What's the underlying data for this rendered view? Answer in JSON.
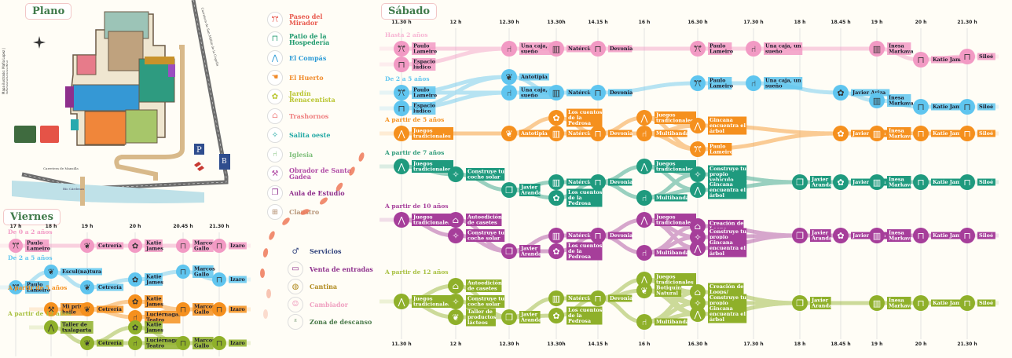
{
  "plano": {
    "title": "Plano",
    "side_credit": "Mapa ilustrado: Mafia Lopez | lafarandulaconsulting",
    "road_top": "Carretera de San Millán de la Cogolla",
    "road_bottom": "Carretera de Mansilla",
    "river": "Río Cárdenas",
    "parking": "P",
    "bus": "B",
    "compass": "N"
  },
  "legend": {
    "places": [
      {
        "label": "Paseo del Mirador",
        "color": "#e8594d",
        "icon": "people-icon"
      },
      {
        "label": "Patio de la Hospedería",
        "color": "#1f9a6e",
        "icon": "bench-icon"
      },
      {
        "label": "El Compás",
        "color": "#2e9bd6",
        "icon": "compass-icon"
      },
      {
        "label": "El Huerto",
        "color": "#f08a2a",
        "icon": "gloves-icon"
      },
      {
        "label": "Jardín Renacentista",
        "color": "#b9c530",
        "icon": "flower-icon"
      },
      {
        "label": "Trashornos",
        "color": "#ef8080",
        "icon": "oven-icon"
      },
      {
        "label": "Salita oeste",
        "color": "#23a9a5",
        "icon": "star-icon"
      },
      {
        "label": "Iglesia",
        "color": "#7fbf7a",
        "icon": "chair-icon"
      },
      {
        "label": "Obrador de Santa Gadea",
        "color": "#b04aa5",
        "icon": "workshop-icon"
      },
      {
        "label": "Aula de Estudio",
        "color": "#8e2f8c",
        "icon": "book-icon"
      },
      {
        "label": "Claustro",
        "color": "#b8967a",
        "icon": "cloister-icon"
      }
    ],
    "services": [
      {
        "label": "Servicios",
        "color": "#2d3f7a",
        "icon": "toilet-icon"
      },
      {
        "label": "Venta de entradas",
        "color": "#8e2f8c",
        "icon": "ticket-icon"
      },
      {
        "label": "Cantina",
        "color": "#b08a1e",
        "icon": "cantina-icon"
      },
      {
        "label": "Cambiador",
        "color": "#f0a0c0",
        "icon": "baby-icon"
      },
      {
        "label": "Zona de descanso",
        "color": "#4b7a4b",
        "icon": "rest-icon"
      }
    ]
  },
  "viernes": {
    "title": "Viernes",
    "times": [
      "17 h",
      "18 h",
      "19 h",
      "20 h",
      "20.45 h",
      "21.30 h"
    ],
    "groups": [
      {
        "label": "De 0 a 2 años",
        "color": "#f29ac4",
        "label_color": "#f29ac4",
        "events": [
          {
            "t": 0,
            "lane": 0,
            "label": "Paulo Lameiro",
            "icon": "people-icon"
          },
          {
            "t": 2,
            "lane": 0,
            "label": "Cetrería",
            "icon": "bird-icon"
          },
          {
            "t": 3,
            "lane": 0,
            "label": "Katie James",
            "icon": "flower-icon"
          },
          {
            "t": 4,
            "lane": 0,
            "label": "Marcos Gallo",
            "icon": "bench-icon"
          },
          {
            "t": 5,
            "lane": 0,
            "label": "Izaro",
            "icon": "bench-icon"
          }
        ]
      },
      {
        "label": "De 2 a 5 años",
        "color": "#5fc5ef",
        "label_color": "#5fc5ef",
        "events": [
          {
            "t": 0,
            "lane": 1,
            "label": "Paulo Lameiro",
            "icon": "people-icon"
          },
          {
            "t": 1,
            "lane": 0,
            "label": "Escul(na)tura",
            "icon": "bird-icon"
          },
          {
            "t": 2,
            "lane": 1,
            "label": "Cetrería",
            "icon": "bird-icon"
          },
          {
            "t": 3,
            "lane": 0.5,
            "label": "Katie James",
            "icon": "flower-icon"
          },
          {
            "t": 4,
            "lane": 0,
            "label": "Marcos Gallo",
            "icon": "bench-icon"
          },
          {
            "t": 5,
            "lane": 0.5,
            "label": "Izaro",
            "icon": "bench-icon"
          }
        ]
      },
      {
        "label": "A partir de 5 años",
        "color": "#f5901e",
        "label_color": "#f5901e",
        "events": [
          {
            "t": 1,
            "lane": 0.5,
            "label": "Mi primer baile",
            "icon": "workshop-icon"
          },
          {
            "t": 2,
            "lane": 0.5,
            "label": "Cetrería",
            "icon": "bird-icon"
          },
          {
            "t": 3,
            "lane": 0,
            "label": "Katie James",
            "icon": "flower-icon"
          },
          {
            "t": 3,
            "lane": 1,
            "label": "Luciérnagas Teatro",
            "icon": "chair-icon"
          },
          {
            "t": 4,
            "lane": 0.5,
            "label": "Marcos Gallo",
            "icon": "bench-icon"
          },
          {
            "t": 5,
            "lane": 0.5,
            "label": "Izaro",
            "icon": "bench-icon"
          }
        ]
      },
      {
        "label": "A partir de 12 años",
        "color": "#8fb02a",
        "label_color": "#a8c040",
        "events": [
          {
            "t": 1,
            "lane": 0,
            "label": "Taller de txalaparta",
            "icon": "compass-icon"
          },
          {
            "t": 2,
            "lane": 1,
            "label": "Cetrería",
            "icon": "bird-icon"
          },
          {
            "t": 3,
            "lane": 0,
            "label": "Katie James",
            "icon": "flower-icon"
          },
          {
            "t": 3,
            "lane": 1,
            "label": "Luciérnagas Teatro",
            "icon": "chair-icon"
          },
          {
            "t": 4,
            "lane": 1,
            "label": "Marcos Gallo",
            "icon": "bench-icon"
          },
          {
            "t": 5,
            "lane": 1,
            "label": "Izaro",
            "icon": "bench-icon"
          }
        ]
      }
    ]
  },
  "sabado": {
    "title": "Sábado",
    "times": [
      "11.30 h",
      "12 h",
      "12.30 h",
      "13.30h",
      "14.15 h",
      "16 h",
      "16.30 h",
      "17.30 h",
      "18 h",
      "18.45 h",
      "19 h",
      "20 h",
      "21.30 h"
    ],
    "groups": [
      {
        "label": "Hasta 2 años",
        "color": "#f29ac4",
        "label_color": "#f7b3d2",
        "dark": false,
        "events": [
          {
            "t": 0,
            "lane": 0,
            "label": "Paulo Lameiro",
            "icon": "people-icon"
          },
          {
            "t": 0,
            "lane": 1,
            "label": "Espacio lúdico",
            "icon": "bench-icon"
          },
          {
            "t": 2,
            "lane": 0,
            "label": "Una caja, un sueño",
            "icon": "chair-icon"
          },
          {
            "t": 3,
            "lane": 0,
            "label": "Natércia",
            "icon": "door-icon"
          },
          {
            "t": 4,
            "lane": 0,
            "label": "Devonia",
            "icon": "bench-icon"
          },
          {
            "t": 6,
            "lane": 0,
            "label": "Paulo Lameiro",
            "icon": "people-icon"
          },
          {
            "t": 7,
            "lane": 0,
            "label": "Una caja, un sueño",
            "icon": "chair-icon"
          },
          {
            "t": 10,
            "lane": 0,
            "label": "Inesa Markava",
            "icon": "door-icon"
          },
          {
            "t": 11,
            "lane": 0.7,
            "label": "Katie James",
            "icon": "bench-icon"
          },
          {
            "t": 12,
            "lane": 0.5,
            "label": "Siloé",
            "icon": "bench-icon"
          }
        ]
      },
      {
        "label": "De 2 a 5 años",
        "color": "#5fc5ef",
        "label_color": "#5fc5ef",
        "dark": false,
        "events": [
          {
            "t": 2,
            "lane": -1,
            "label": "Antotipia",
            "icon": "bird-icon"
          },
          {
            "t": 0,
            "lane": 0,
            "label": "Paulo Lameiro",
            "icon": "people-icon"
          },
          {
            "t": 0,
            "lane": 1,
            "label": "Espacio lúdico",
            "icon": "bench-icon"
          },
          {
            "t": 2,
            "lane": 0,
            "label": "Una caja, un sueño",
            "icon": "chair-icon"
          },
          {
            "t": 3,
            "lane": 0,
            "label": "Natércia",
            "icon": "door-icon"
          },
          {
            "t": 4,
            "lane": 0,
            "label": "Devonia",
            "icon": "bench-icon"
          },
          {
            "t": 6,
            "lane": -0.6,
            "label": "Paulo Lameiro",
            "icon": "people-icon"
          },
          {
            "t": 7,
            "lane": -0.6,
            "label": "Una caja, un sueño",
            "icon": "chair-icon"
          },
          {
            "t": 9,
            "lane": 0,
            "label": "Javier Ariza",
            "icon": "flower-icon"
          },
          {
            "t": 10,
            "lane": 0.5,
            "label": "Inesa Markava",
            "icon": "door-icon"
          },
          {
            "t": 11,
            "lane": 0.9,
            "label": "Katie James",
            "icon": "bench-icon"
          },
          {
            "t": 12,
            "lane": 0.9,
            "label": "Siloé",
            "icon": "bench-icon"
          }
        ]
      },
      {
        "label": "A partir de 5 años",
        "color": "#f5901e",
        "label_color": "#f5901e",
        "dark": true,
        "events": [
          {
            "t": 0,
            "lane": 0,
            "label": "Juegos tradicionales",
            "icon": "compass-icon"
          },
          {
            "t": 2,
            "lane": 0,
            "label": "Antotipia",
            "icon": "bird-icon"
          },
          {
            "t": 3,
            "lane": -1,
            "label": "Los cuentos de la Pedrosa",
            "icon": "flower-icon"
          },
          {
            "t": 3,
            "lane": 0,
            "label": "Natércia",
            "icon": "door-icon"
          },
          {
            "t": 4,
            "lane": 0,
            "label": "Devonia",
            "icon": "bench-icon"
          },
          {
            "t": 5,
            "lane": -1,
            "label": "Juegos tradicionales",
            "icon": "compass-icon"
          },
          {
            "t": 5,
            "lane": 0,
            "label": "Multibanda",
            "icon": "chair-icon"
          },
          {
            "t": 6,
            "lane": -0.5,
            "label": "Gincana encuentra el árbol",
            "icon": "compass-icon"
          },
          {
            "t": 6,
            "lane": 1,
            "label": "Paulo Lameiro",
            "icon": "people-icon"
          },
          {
            "t": 9,
            "lane": 0,
            "label": "Javier Ariza",
            "icon": "flower-icon"
          },
          {
            "t": 10,
            "lane": 0,
            "label": "Inesa Markava",
            "icon": "door-icon"
          },
          {
            "t": 11,
            "lane": 0,
            "label": "Katie James",
            "icon": "bench-icon"
          },
          {
            "t": 12,
            "lane": 0,
            "label": "Siloé",
            "icon": "bench-icon"
          }
        ]
      },
      {
        "label": "A partir de 7 años",
        "color": "#1f9a7e",
        "label_color": "#2e9b7a",
        "dark": true,
        "events": [
          {
            "t": 0,
            "lane": 0,
            "label": "Juegos tradicionales",
            "icon": "compass-icon"
          },
          {
            "t": 1,
            "lane": 0.5,
            "label": "Construye tu coche solar",
            "icon": "star-icon"
          },
          {
            "t": 2,
            "lane": 1.5,
            "label": "Javier Aranda",
            "icon": "book-icon"
          },
          {
            "t": 3,
            "lane": 1,
            "label": "Natércia",
            "icon": "door-icon"
          },
          {
            "t": 3,
            "lane": 2,
            "label": "Los cuentos de la Pedrosa",
            "icon": "flower-icon"
          },
          {
            "t": 4,
            "lane": 1,
            "label": "Devonia",
            "icon": "bench-icon"
          },
          {
            "t": 5,
            "lane": 0,
            "label": "Juegos tradicionales",
            "icon": "compass-icon"
          },
          {
            "t": 5,
            "lane": 2,
            "label": "Multibanda",
            "icon": "chair-icon"
          },
          {
            "t": 6,
            "lane": 0.5,
            "label": "Construye tu propio vehículo",
            "icon": "star-icon"
          },
          {
            "t": 6,
            "lane": 1.5,
            "label": "Gincana encuentra el árbol",
            "icon": "compass-icon"
          },
          {
            "t": 8,
            "lane": 1,
            "label": "Javier Aranda",
            "icon": "book-icon"
          },
          {
            "t": 9,
            "lane": 1,
            "label": "Javier Ariza",
            "icon": "flower-icon"
          },
          {
            "t": 10,
            "lane": 1,
            "label": "Inesa Markava",
            "icon": "door-icon"
          },
          {
            "t": 11,
            "lane": 1,
            "label": "Katie James",
            "icon": "bench-icon"
          },
          {
            "t": 12,
            "lane": 1,
            "label": "Siloé",
            "icon": "bench-icon"
          }
        ]
      },
      {
        "label": "A partir de 10 años",
        "color": "#a63e9a",
        "label_color": "#a63e9a",
        "dark": true,
        "events": [
          {
            "t": 0,
            "lane": 0,
            "label": "Juegos tradicionales",
            "icon": "compass-icon"
          },
          {
            "t": 1,
            "lane": 0,
            "label": "Autoedición de casetes",
            "icon": "oven-icon"
          },
          {
            "t": 1,
            "lane": 1,
            "label": "Construye tu coche solar",
            "icon": "star-icon"
          },
          {
            "t": 2,
            "lane": 2,
            "label": "Javier Aranda",
            "icon": "book-icon"
          },
          {
            "t": 3,
            "lane": 1,
            "label": "Natércia",
            "icon": "door-icon"
          },
          {
            "t": 3,
            "lane": 2,
            "label": "Los cuentos de la Pedrosa",
            "icon": "flower-icon"
          },
          {
            "t": 4,
            "lane": 1,
            "label": "Devonia",
            "icon": "bench-icon"
          },
          {
            "t": 5,
            "lane": 0,
            "label": "Juegos tradicionales",
            "icon": "compass-icon"
          },
          {
            "t": 5,
            "lane": 2.1,
            "label": "Multibanda",
            "icon": "chair-icon"
          },
          {
            "t": 6,
            "lane": 0.4,
            "label": "Creación de Loops",
            "icon": "oven-icon"
          },
          {
            "t": 6,
            "lane": 1.1,
            "label": "Construye tu propio vehículo",
            "icon": "star-icon"
          },
          {
            "t": 6,
            "lane": 1.8,
            "label": "Gincana encuentra el árbol",
            "icon": "compass-icon"
          },
          {
            "t": 8,
            "lane": 1,
            "label": "Javier Aranda",
            "icon": "book-icon"
          },
          {
            "t": 9,
            "lane": 1,
            "label": "Javier Ariza",
            "icon": "flower-icon"
          },
          {
            "t": 10,
            "lane": 1,
            "label": "Inesa Markava",
            "icon": "door-icon"
          },
          {
            "t": 11,
            "lane": 1,
            "label": "Katie James",
            "icon": "bench-icon"
          },
          {
            "t": 12,
            "lane": 1,
            "label": "Siloé",
            "icon": "bench-icon"
          }
        ]
      },
      {
        "label": "A partir de 12 años",
        "color": "#8fb02a",
        "label_color": "#a8c040",
        "dark": true,
        "events": [
          {
            "t": 0,
            "lane": 1,
            "label": "Juegos tradicionales",
            "icon": "compass-icon"
          },
          {
            "t": 1,
            "lane": 0,
            "label": "Autoedición de casetes",
            "icon": "oven-icon"
          },
          {
            "t": 1,
            "lane": 1,
            "label": "Construye tu coche solar",
            "icon": "star-icon"
          },
          {
            "t": 1,
            "lane": 2,
            "label": "Taller de productos lácteos",
            "icon": "bird-icon"
          },
          {
            "t": 2,
            "lane": 2,
            "label": "Javier Aranda",
            "icon": "book-icon"
          },
          {
            "t": 3,
            "lane": 0.8,
            "label": "Natércia",
            "icon": "door-icon"
          },
          {
            "t": 3,
            "lane": 1.9,
            "label": "Los cuentos de la Pedrosa",
            "icon": "flower-icon"
          },
          {
            "t": 4,
            "lane": 0.8,
            "label": "Devonia",
            "icon": "bench-icon"
          },
          {
            "t": 5,
            "lane": -0.4,
            "label": "Juegos tradicionales",
            "icon": "compass-icon"
          },
          {
            "t": 5,
            "lane": 0.3,
            "label": "Botiquín Natural",
            "icon": "bird-icon"
          },
          {
            "t": 5,
            "lane": 2.3,
            "label": "Multibanda",
            "icon": "chair-icon"
          },
          {
            "t": 6,
            "lane": 0.4,
            "label": "Creación de Loops/ taller cassetes",
            "icon": "oven-icon"
          },
          {
            "t": 6,
            "lane": 1.1,
            "label": "Construye tu propio vehículo",
            "icon": "star-icon"
          },
          {
            "t": 6,
            "lane": 1.8,
            "label": "Gincana encuentra el árbol",
            "icon": "compass-icon"
          },
          {
            "t": 8,
            "lane": 1.1,
            "label": "Javier Aranda",
            "icon": "book-icon"
          },
          {
            "t": 10,
            "lane": 1.1,
            "label": "Inesa Markava",
            "icon": "door-icon"
          },
          {
            "t": 11,
            "lane": 1.1,
            "label": "Katie James",
            "icon": "bench-icon"
          },
          {
            "t": 12,
            "lane": 1.1,
            "label": "Siloé",
            "icon": "bench-icon"
          }
        ]
      }
    ]
  }
}
